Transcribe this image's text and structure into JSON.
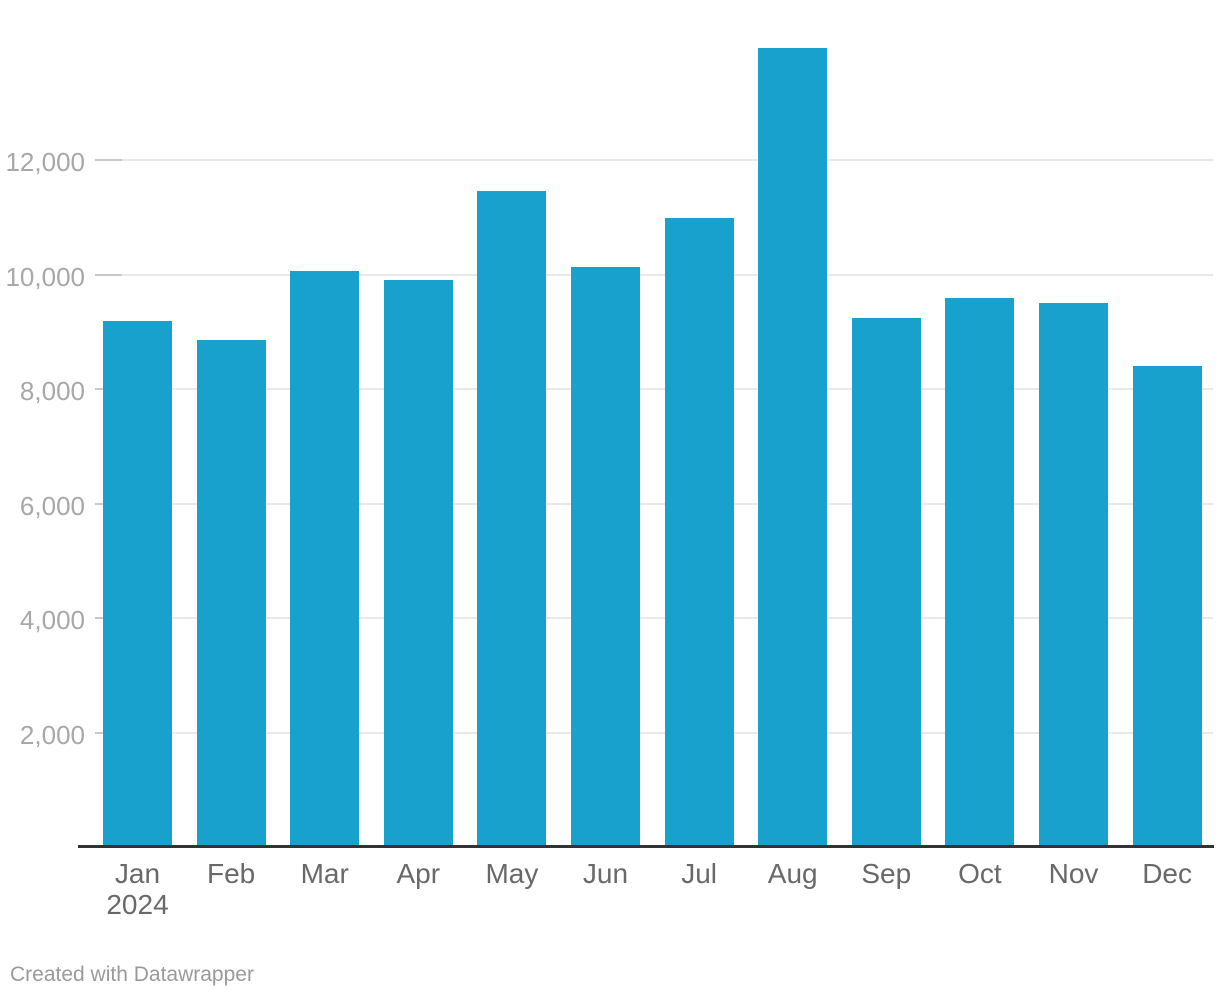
{
  "chart_data": {
    "type": "bar",
    "title": "",
    "categories": [
      "Jan",
      "Feb",
      "Mar",
      "Apr",
      "May",
      "Jun",
      "Jul",
      "Aug",
      "Sep",
      "Oct",
      "Nov",
      "Dec"
    ],
    "x_first_label_second_line": "2024",
    "values": [
      9190,
      8860,
      10060,
      9900,
      11460,
      10130,
      10990,
      13960,
      9240,
      9590,
      9500,
      8400
    ],
    "y_ticks": [
      2000,
      4000,
      6000,
      8000,
      10000,
      12000
    ],
    "y_tick_labels": [
      "2,000",
      "4,000",
      "6,000",
      "8,000",
      "10,000",
      "12,000"
    ],
    "ylim": [
      0,
      14300
    ],
    "grid": "horizontal",
    "legend": "none",
    "bar_color": "#18a1cd"
  },
  "colors": {
    "bar": "#18a1cd",
    "gridline": "#e9e9e9",
    "grid_tick": "#c9c9c9",
    "baseline": "#333333",
    "y_label": "#a8a8a8",
    "x_label": "#696969",
    "credit": "#9a9a9a"
  },
  "footer": {
    "credit": "Created with Datawrapper"
  }
}
